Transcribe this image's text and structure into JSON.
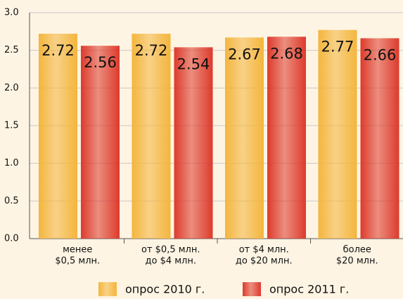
{
  "chart_data": {
    "type": "bar",
    "categories": [
      [
        "менее",
        "$0,5 млн."
      ],
      [
        "от $0,5 млн.",
        "до $4 млн."
      ],
      [
        "от $4 млн.",
        "до $20 млн."
      ],
      [
        "более",
        "$20 млн."
      ]
    ],
    "series": [
      {
        "name": "опрос 2010 г.",
        "color": "#f4b53c",
        "values": [
          2.72,
          2.72,
          2.67,
          2.77
        ]
      },
      {
        "name": "опрос 2011 г.",
        "color": "#dd3a2c",
        "values": [
          2.56,
          2.54,
          2.68,
          2.66
        ]
      }
    ],
    "ylim": [
      0,
      3
    ],
    "yticks": [
      {
        "value": 0,
        "label": "0.0"
      },
      {
        "value": 0.5,
        "label": "0.5"
      },
      {
        "value": 1,
        "label": "1.0"
      },
      {
        "value": 1.5,
        "label": "1.5"
      },
      {
        "value": 2,
        "label": "2.0"
      },
      {
        "value": 2.5,
        "label": "2.5"
      },
      {
        "value": 3,
        "label": "3.0"
      }
    ],
    "grid": true
  }
}
